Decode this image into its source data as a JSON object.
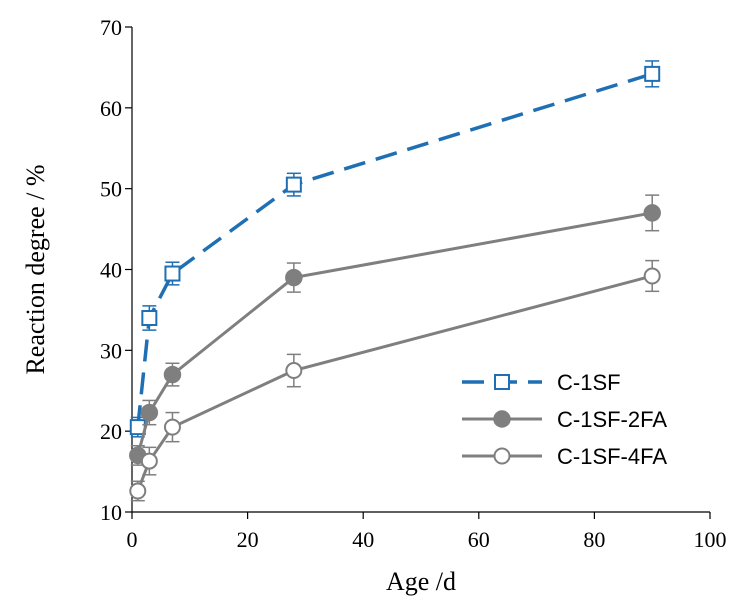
{
  "chart_data": {
    "type": "line",
    "xlabel": "Age /d",
    "ylabel": "Reaction degree / %",
    "xlim": [
      0,
      100
    ],
    "ylim": [
      10,
      70
    ],
    "xticks": [
      0,
      20,
      40,
      60,
      80,
      100
    ],
    "yticks": [
      10,
      20,
      30,
      40,
      50,
      60,
      70
    ],
    "grid": false,
    "legend_position": "right",
    "series": [
      {
        "name": "C-1SF",
        "color": "#1f6fb4",
        "line_style": "dashed",
        "marker": "open-square",
        "x": [
          1,
          3,
          7,
          28,
          90
        ],
        "y": [
          20.5,
          34.0,
          39.5,
          50.5,
          64.2
        ],
        "error": [
          1.2,
          1.5,
          1.4,
          1.4,
          1.6
        ]
      },
      {
        "name": "C-1SF-2FA",
        "color": "#7f7f7f",
        "line_style": "solid",
        "marker": "filled-circle",
        "x": [
          1,
          3,
          7,
          28,
          90
        ],
        "y": [
          17.0,
          22.3,
          27.0,
          39.0,
          47.0
        ],
        "error": [
          1.2,
          1.5,
          1.4,
          1.8,
          2.2
        ]
      },
      {
        "name": "C-1SF-4FA",
        "color": "#7f7f7f",
        "line_style": "solid",
        "marker": "open-circle",
        "x": [
          1,
          3,
          7,
          28,
          90
        ],
        "y": [
          12.6,
          16.3,
          20.5,
          27.5,
          39.2
        ],
        "error": [
          1.2,
          1.7,
          1.8,
          2.0,
          1.9
        ]
      }
    ]
  }
}
